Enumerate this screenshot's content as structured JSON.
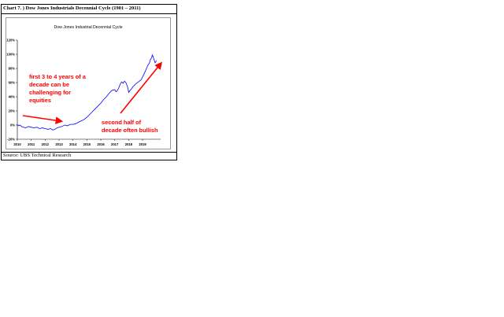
{
  "figure": {
    "caption": "Chart 7. ) Dow Jones Industrials Decennial Cycle (1901 – 2011)",
    "source": "Source: UBS Technical Research"
  },
  "colors": {
    "line": "#0000ff",
    "annotation": "#ff0000",
    "axis": "#000000"
  },
  "chart_data": {
    "type": "line",
    "title": "Dow Jones Industrial Decennial Cycle",
    "xlabel": "",
    "ylabel": "",
    "x_ticks": [
      "2010",
      "2011",
      "2012",
      "2013",
      "2014",
      "2015",
      "2016",
      "2017",
      "2018",
      "2019"
    ],
    "y_ticks": [
      "120%",
      "100%",
      "80%",
      "60%",
      "40%",
      "20%",
      "0%",
      "-20%"
    ],
    "ylim": [
      -20,
      120
    ],
    "xlim": [
      0,
      10.3
    ],
    "grid": false,
    "series": [
      {
        "values": [
          [
            0.0,
            1
          ],
          [
            0.1,
            -1
          ],
          [
            0.2,
            0
          ],
          [
            0.3,
            -2
          ],
          [
            0.45,
            -3
          ],
          [
            0.6,
            -4
          ],
          [
            0.8,
            -2
          ],
          [
            1.0,
            -3
          ],
          [
            1.2,
            -4
          ],
          [
            1.4,
            -3
          ],
          [
            1.6,
            -5
          ],
          [
            1.8,
            -4
          ],
          [
            2.0,
            -5
          ],
          [
            2.2,
            -6
          ],
          [
            2.4,
            -5
          ],
          [
            2.55,
            -7
          ],
          [
            2.7,
            -6
          ],
          [
            2.85,
            -4
          ],
          [
            3.0,
            -3
          ],
          [
            3.2,
            -2
          ],
          [
            3.4,
            0
          ],
          [
            3.6,
            -1
          ],
          [
            3.8,
            1
          ],
          [
            4.0,
            1
          ],
          [
            4.2,
            2
          ],
          [
            4.4,
            4
          ],
          [
            4.6,
            6
          ],
          [
            4.8,
            8
          ],
          [
            5.0,
            11
          ],
          [
            5.2,
            15
          ],
          [
            5.4,
            19
          ],
          [
            5.6,
            23
          ],
          [
            5.8,
            27
          ],
          [
            6.0,
            31
          ],
          [
            6.2,
            36
          ],
          [
            6.4,
            40
          ],
          [
            6.6,
            45
          ],
          [
            6.8,
            49
          ],
          [
            7.0,
            50
          ],
          [
            7.1,
            47
          ],
          [
            7.2,
            49
          ],
          [
            7.3,
            53
          ],
          [
            7.4,
            58
          ],
          [
            7.5,
            61
          ],
          [
            7.6,
            59
          ],
          [
            7.7,
            62
          ],
          [
            7.8,
            60
          ],
          [
            7.9,
            55
          ],
          [
            7.95,
            52
          ],
          [
            8.0,
            46
          ],
          [
            8.1,
            49
          ],
          [
            8.2,
            51
          ],
          [
            8.3,
            54
          ],
          [
            8.5,
            58
          ],
          [
            8.7,
            61
          ],
          [
            8.9,
            64
          ],
          [
            9.0,
            68
          ],
          [
            9.1,
            72
          ],
          [
            9.2,
            76
          ],
          [
            9.3,
            81
          ],
          [
            9.4,
            85
          ],
          [
            9.5,
            88
          ],
          [
            9.55,
            92
          ],
          [
            9.65,
            95
          ],
          [
            9.7,
            99
          ],
          [
            9.75,
            97
          ],
          [
            9.8,
            94
          ],
          [
            9.85,
            91
          ],
          [
            9.9,
            88
          ],
          [
            10.0,
            91
          ]
        ]
      }
    ],
    "annotations": [
      {
        "lines": [
          "first 3 to 4 years of a",
          "decade can be",
          "challenging for",
          "equities"
        ]
      },
      {
        "lines": [
          "second half of",
          "decade often bullish"
        ]
      }
    ]
  }
}
